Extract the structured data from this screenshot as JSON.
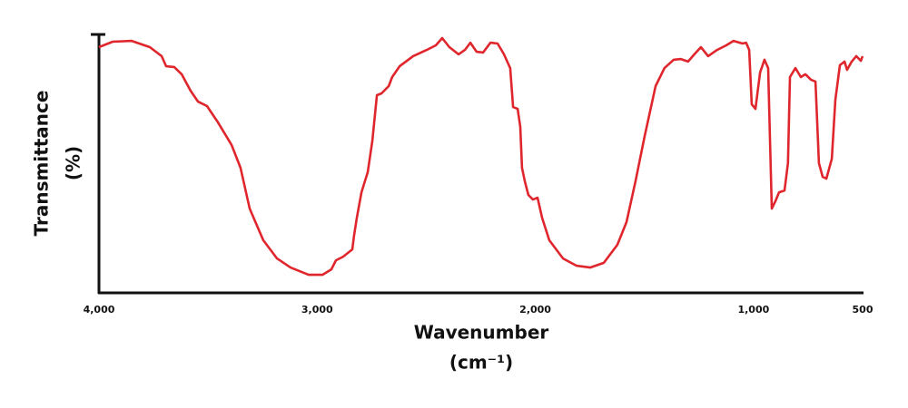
{
  "chart_data": {
    "type": "line",
    "x_label": "Wavenumber",
    "x_unit": "(cm⁻¹)",
    "y_label": "Transmittance",
    "y_unit": "(%)",
    "xlim": [
      4000,
      500
    ],
    "ylim": [
      0,
      100
    ],
    "xticks": [
      {
        "value": 4000,
        "label": "4,000"
      },
      {
        "value": 3000,
        "label": "3,000"
      },
      {
        "value": 2000,
        "label": "2,000"
      },
      {
        "value": 1000,
        "label": "1,000"
      },
      500
    ],
    "series": [
      {
        "color": "#e0262d",
        "x": [
          4000,
          3937,
          3850,
          3767,
          3713,
          3692,
          3655,
          3621,
          3580,
          3546,
          3505,
          3455,
          3392,
          3351,
          3309,
          3247,
          3184,
          3122,
          3039,
          2976,
          2935,
          2914,
          2881,
          2839,
          2831,
          2818,
          2797,
          2768,
          2747,
          2726,
          2705,
          2672,
          2656,
          2622,
          2560,
          2498,
          2456,
          2427,
          2394,
          2352,
          2323,
          2298,
          2269,
          2239,
          2206,
          2173,
          2144,
          2115,
          2102,
          2081,
          2069,
          2061,
          2048,
          2032,
          2011,
          1990,
          1969,
          1936,
          1873,
          1811,
          1749,
          1686,
          1624,
          1582,
          1541,
          1499,
          1449,
          1408,
          1366,
          1333,
          1300,
          1271,
          1241,
          1208,
          1167,
          1125,
          1092,
          1050,
          1034,
          1020,
          1008,
          991,
          970,
          950,
          933,
          925,
          916,
          900,
          883,
          858,
          842,
          833,
          808,
          783,
          762,
          737,
          716,
          700,
          683,
          666,
          641,
          625,
          604,
          583,
          571,
          550,
          529,
          508,
          500
        ],
        "values": [
          95.1,
          97.2,
          97.5,
          95.1,
          91.6,
          87.7,
          87.4,
          84.6,
          78.2,
          74.0,
          72.3,
          66.0,
          57.2,
          48.4,
          32.6,
          20.4,
          13.3,
          9.8,
          7.0,
          7.0,
          9.1,
          12.6,
          14.0,
          16.8,
          22.1,
          29.1,
          38.9,
          46.7,
          58.9,
          76.5,
          77.2,
          80.0,
          83.5,
          87.7,
          91.6,
          94.0,
          95.8,
          98.6,
          95.1,
          92.3,
          94.0,
          96.8,
          93.3,
          93.0,
          96.8,
          96.5,
          92.3,
          87.0,
          71.9,
          71.2,
          64.2,
          48.4,
          43.2,
          37.9,
          36.1,
          36.8,
          29.1,
          20.4,
          13.3,
          10.5,
          9.8,
          11.6,
          18.6,
          27.4,
          43.2,
          60.7,
          80.0,
          87.0,
          90.2,
          90.5,
          89.5,
          92.3,
          95.1,
          91.6,
          94.0,
          95.8,
          97.5,
          96.5,
          96.8,
          94.0,
          73.0,
          71.2,
          85.3,
          90.2,
          87.0,
          60.7,
          32.6,
          35.4,
          38.9,
          39.6,
          50.2,
          83.5,
          87.0,
          83.5,
          84.6,
          82.5,
          81.8,
          50.2,
          44.9,
          44.2,
          51.9,
          74.7,
          88.1,
          89.5,
          86.3,
          89.5,
          91.6,
          89.8,
          91.6
        ]
      }
    ]
  }
}
